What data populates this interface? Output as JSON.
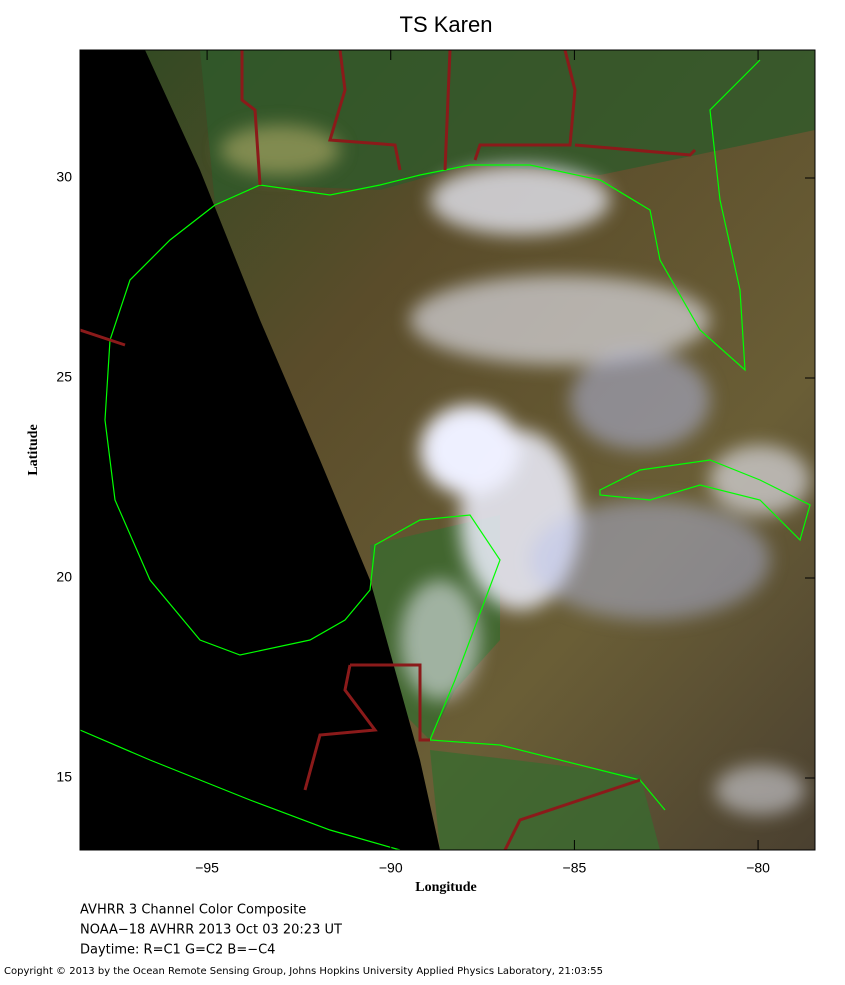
{
  "title": "TS Karen",
  "map": {
    "xlabel": "Longitude",
    "ylabel": "Latitude",
    "xlim": [
      -98.46,
      -78.45
    ],
    "ylim": [
      13.2,
      33.2
    ],
    "xticks": [
      {
        "value": -95,
        "label": "−95"
      },
      {
        "value": -90,
        "label": "−90"
      },
      {
        "value": -85,
        "label": "−85"
      },
      {
        "value": -80,
        "label": "−80"
      }
    ],
    "yticks": [
      15,
      20,
      25,
      30
    ]
  },
  "caption": [
    "AVHRR 3 Channel Color Composite",
    "NOAA−18 AVHRR 2013 Oct 03 20:23 UT",
    "Daytime: R=C1 G=C2 B=−C4"
  ],
  "copyright": "Copyright © 2013 by the Ocean Remote Sensing Group, Johns Hopkins University Applied Physics Laboratory, 21:03:55"
}
